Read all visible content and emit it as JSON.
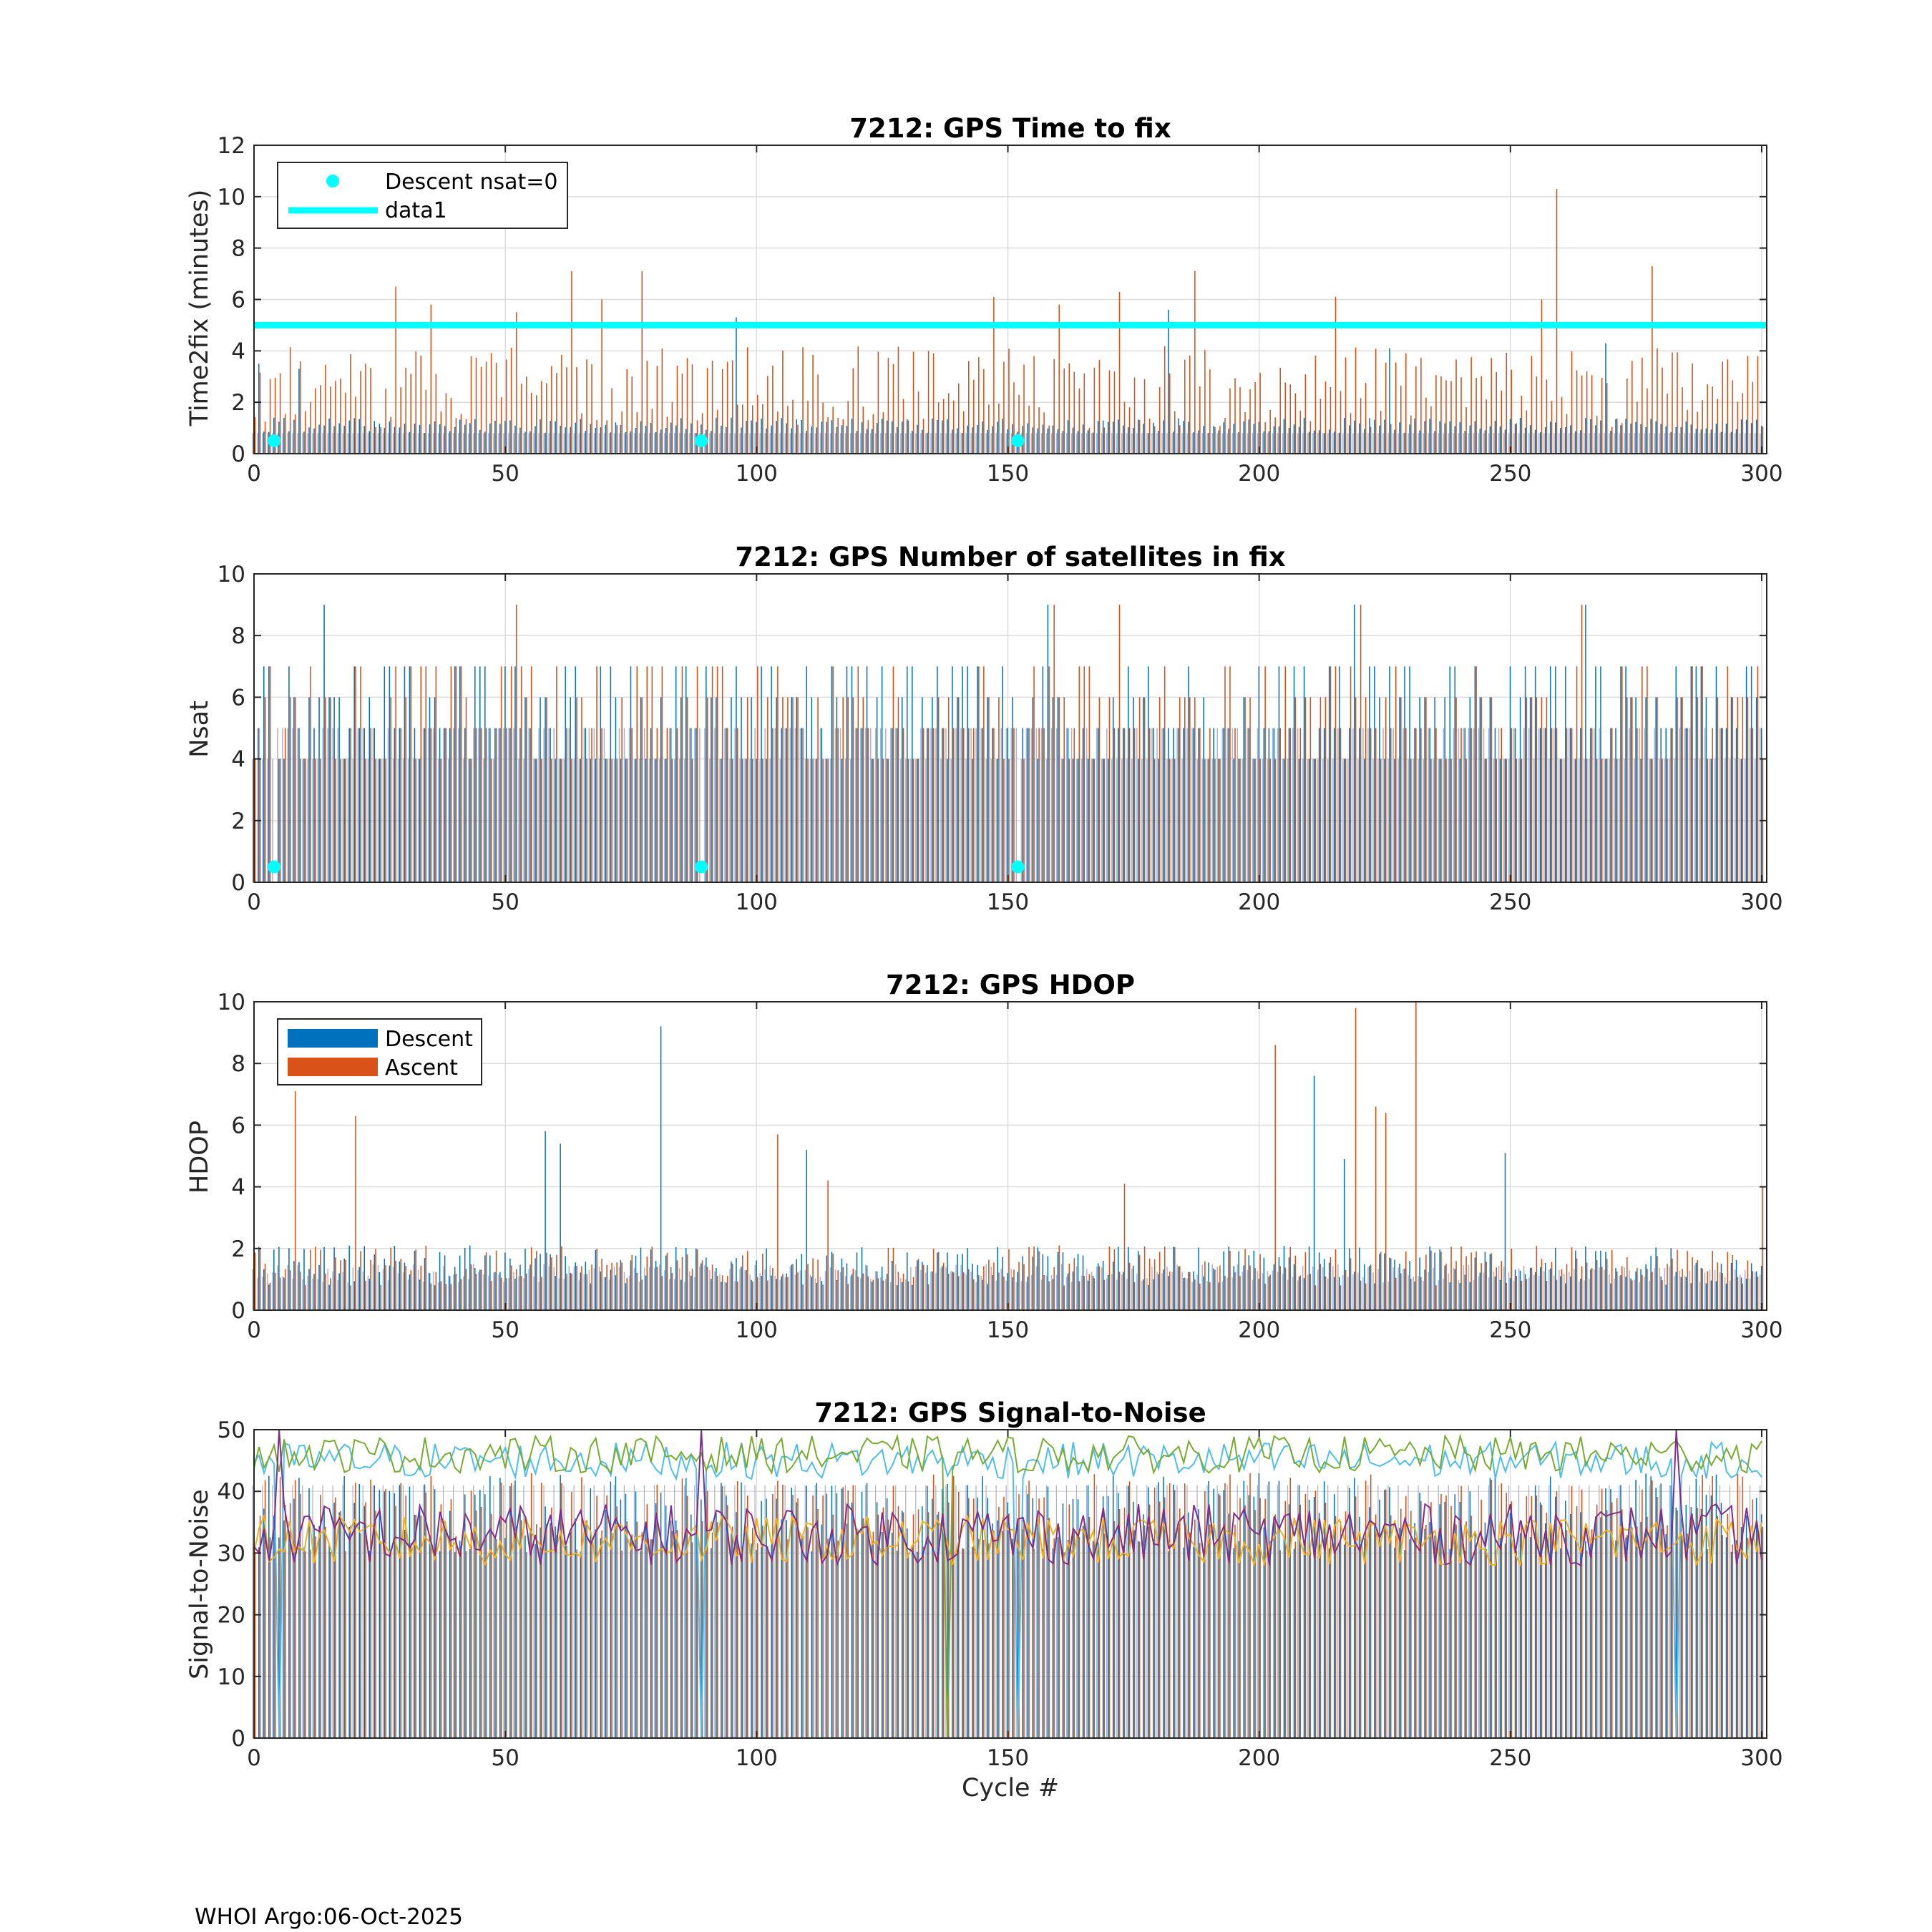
{
  "footer": "WHOI Argo:06-Oct-2025",
  "colors": {
    "descent": "#0072BD",
    "ascent": "#D95319",
    "nsat0": "#00FFFF",
    "gray": "#B4B4C8",
    "dark": "#3A3A50",
    "snr_lines": [
      "#4DBEEE",
      "#77AC30",
      "#EDB120",
      "#7E2F8E"
    ]
  },
  "chart_data": [
    {
      "id": "time2fix",
      "type": "bar",
      "title": "7212: GPS Time to fix",
      "xlabel": "",
      "ylabel": "Time2fix (minutes)",
      "xlim": [
        0,
        301
      ],
      "ylim": [
        0,
        12
      ],
      "xticks": [
        "0",
        "50",
        "100",
        "150",
        "200",
        "250",
        "300"
      ],
      "yticks": [
        "0",
        "2",
        "4",
        "6",
        "8",
        "10",
        "12"
      ],
      "grid": true,
      "legend": {
        "position": "top-left",
        "entries": [
          "Descent nsat=0",
          "data1"
        ]
      },
      "threshold_line": {
        "name": "data1",
        "value": 5
      },
      "nsat0_points": {
        "name": "Descent nsat=0",
        "x": [
          4,
          89,
          152
        ],
        "y": 0.5
      },
      "baseline": {
        "descent": 0.8,
        "ascent": 0.8
      },
      "peaks": [
        {
          "x": 1,
          "series": "descent",
          "value": 3.5
        },
        {
          "x": 9,
          "series": "descent",
          "value": 3.3
        },
        {
          "x": 28,
          "series": "ascent",
          "value": 6.5
        },
        {
          "x": 35,
          "series": "ascent",
          "value": 5.8
        },
        {
          "x": 52,
          "series": "ascent",
          "value": 5.5
        },
        {
          "x": 63,
          "series": "ascent",
          "value": 7.1
        },
        {
          "x": 69,
          "series": "ascent",
          "value": 6.0
        },
        {
          "x": 77,
          "series": "ascent",
          "value": 7.1
        },
        {
          "x": 96,
          "series": "descent",
          "value": 5.3
        },
        {
          "x": 147,
          "series": "ascent",
          "value": 6.1
        },
        {
          "x": 160,
          "series": "ascent",
          "value": 5.8
        },
        {
          "x": 172,
          "series": "ascent",
          "value": 6.3
        },
        {
          "x": 182,
          "series": "descent",
          "value": 5.6
        },
        {
          "x": 187,
          "series": "ascent",
          "value": 7.1
        },
        {
          "x": 215,
          "series": "ascent",
          "value": 6.1
        },
        {
          "x": 226,
          "series": "descent",
          "value": 4.1
        },
        {
          "x": 256,
          "series": "ascent",
          "value": 6.0
        },
        {
          "x": 259,
          "series": "ascent",
          "value": 10.3
        },
        {
          "x": 269,
          "series": "descent",
          "value": 4.3
        },
        {
          "x": 278,
          "series": "ascent",
          "value": 7.3
        }
      ],
      "typical_range": {
        "descent": [
          0.8,
          2.5
        ],
        "ascent": [
          1.0,
          4.5
        ]
      }
    },
    {
      "id": "nsat",
      "type": "bar",
      "title": "7212: GPS Number of satellites in fix",
      "xlabel": "",
      "ylabel": "Nsat",
      "xlim": [
        0,
        301
      ],
      "ylim": [
        0,
        10
      ],
      "xticks": [
        "0",
        "50",
        "100",
        "150",
        "200",
        "250",
        "300"
      ],
      "yticks": [
        "0",
        "2",
        "4",
        "6",
        "8",
        "10"
      ],
      "grid": true,
      "nsat0_points": {
        "x": [
          4,
          89,
          152
        ],
        "y": 0.5
      },
      "peaks": [
        {
          "x": 14,
          "series": "descent",
          "value": 9
        },
        {
          "x": 52,
          "series": "ascent",
          "value": 9
        },
        {
          "x": 158,
          "series": "descent",
          "value": 9
        },
        {
          "x": 159,
          "series": "ascent",
          "value": 9
        },
        {
          "x": 172,
          "series": "ascent",
          "value": 9
        },
        {
          "x": 219,
          "series": "descent",
          "value": 9
        },
        {
          "x": 220,
          "series": "ascent",
          "value": 9
        },
        {
          "x": 264,
          "series": "ascent",
          "value": 9
        },
        {
          "x": 265,
          "series": "descent",
          "value": 9
        }
      ],
      "typical_range": {
        "descent": [
          4,
          8
        ],
        "ascent": [
          4,
          8
        ]
      }
    },
    {
      "id": "hdop",
      "type": "bar",
      "title": "7212: GPS HDOP",
      "xlabel": "",
      "ylabel": "HDOP",
      "xlim": [
        0,
        301
      ],
      "ylim": [
        0,
        10
      ],
      "xticks": [
        "0",
        "50",
        "100",
        "150",
        "200",
        "250",
        "300"
      ],
      "yticks": [
        "0",
        "2",
        "4",
        "6",
        "8",
        "10"
      ],
      "grid": true,
      "legend": {
        "position": "top-left",
        "entries": [
          "Descent",
          "Ascent"
        ]
      },
      "peaks": [
        {
          "x": 8,
          "series": "ascent",
          "value": 7.1
        },
        {
          "x": 20,
          "series": "ascent",
          "value": 6.3
        },
        {
          "x": 58,
          "series": "descent",
          "value": 5.8
        },
        {
          "x": 61,
          "series": "descent",
          "value": 5.4
        },
        {
          "x": 81,
          "series": "descent",
          "value": 9.2
        },
        {
          "x": 104,
          "series": "ascent",
          "value": 5.7
        },
        {
          "x": 110,
          "series": "descent",
          "value": 5.2
        },
        {
          "x": 114,
          "series": "ascent",
          "value": 4.2
        },
        {
          "x": 173,
          "series": "ascent",
          "value": 4.1
        },
        {
          "x": 203,
          "series": "ascent",
          "value": 8.6
        },
        {
          "x": 211,
          "series": "descent",
          "value": 7.6
        },
        {
          "x": 217,
          "series": "descent",
          "value": 4.9
        },
        {
          "x": 219,
          "series": "ascent",
          "value": 9.8
        },
        {
          "x": 223,
          "series": "ascent",
          "value": 6.6
        },
        {
          "x": 225,
          "series": "ascent",
          "value": 6.4
        },
        {
          "x": 231,
          "series": "ascent",
          "value": 10.0
        },
        {
          "x": 249,
          "series": "descent",
          "value": 5.1
        },
        {
          "x": 300,
          "series": "ascent",
          "value": 4.0
        }
      ],
      "typical_range": {
        "descent": [
          0.8,
          2.2
        ],
        "ascent": [
          0.8,
          2.2
        ]
      }
    },
    {
      "id": "snr",
      "type": "bar",
      "title": "7212: GPS Signal-to-Noise",
      "xlabel": "Cycle #",
      "ylabel": "Signal-to-Noise",
      "xlim": [
        0,
        301
      ],
      "ylim": [
        0,
        50
      ],
      "xticks": [
        "0",
        "50",
        "100",
        "150",
        "200",
        "250",
        "300"
      ],
      "yticks": [
        "0",
        "10",
        "20",
        "30",
        "40",
        "50"
      ],
      "grid": true,
      "bar_range": [
        30,
        43
      ],
      "line_series": [
        {
          "name": "snr-max-a",
          "mean": 45,
          "amp": 3
        },
        {
          "name": "snr-max-b",
          "mean": 46,
          "amp": 3
        },
        {
          "name": "snr-min-a",
          "mean": 32,
          "amp": 4
        },
        {
          "name": "snr-min-b",
          "mean": 33,
          "amp": 5
        }
      ],
      "dropouts": [
        {
          "x": 5,
          "value": 0
        },
        {
          "x": 89,
          "value": 0
        },
        {
          "x": 138,
          "value": 0
        },
        {
          "x": 152,
          "value": 0
        },
        {
          "x": 283,
          "value": 0
        }
      ]
    }
  ]
}
